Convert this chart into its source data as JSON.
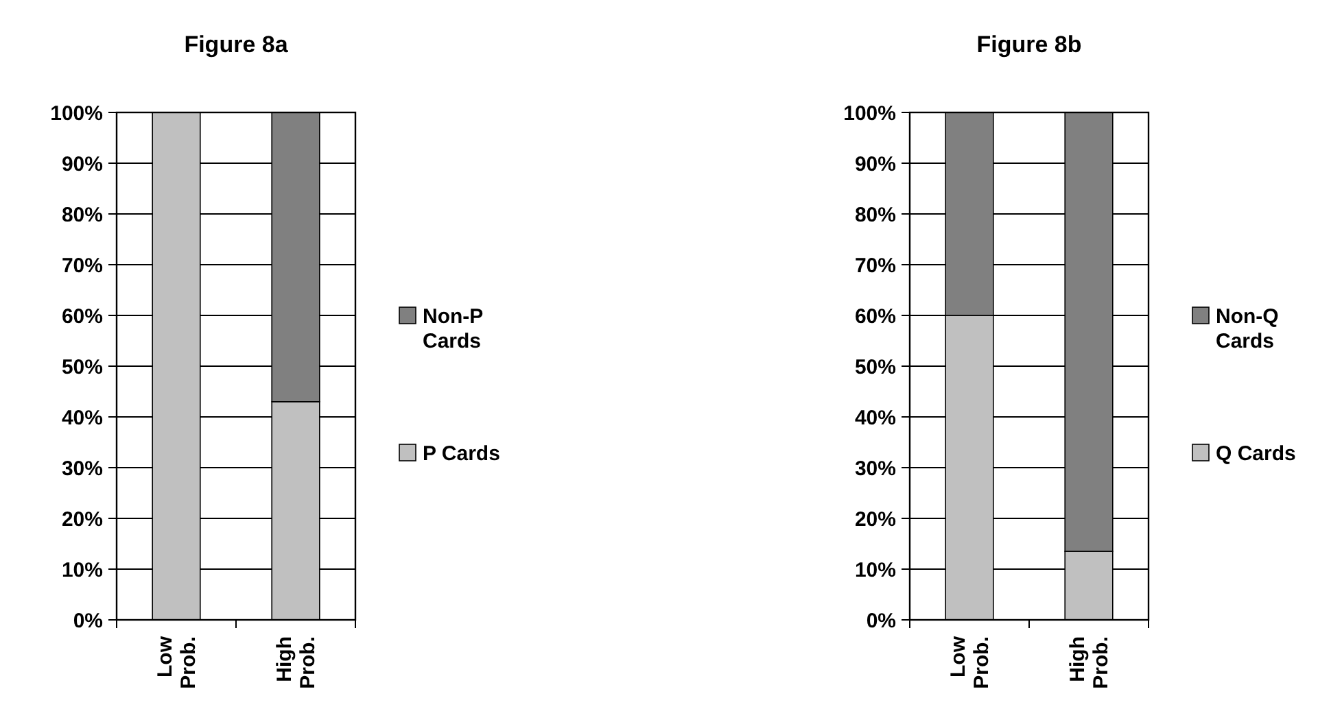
{
  "chart_data": [
    {
      "type": "bar",
      "title": "Figure 8a",
      "categories": [
        "Low Prob.",
        "High Prob."
      ],
      "stacked": true,
      "grid": "y",
      "legend": "right",
      "series": [
        {
          "name": "P Cards",
          "color": "#c0c0c0",
          "values": [
            100,
            43
          ]
        },
        {
          "name": "Non-P Cards",
          "color": "#808080",
          "values": [
            0,
            57
          ]
        }
      ],
      "ylim": [
        0,
        100
      ],
      "yticks": [
        {
          "value": 0,
          "label": "0%"
        },
        {
          "value": 10,
          "label": "10%"
        },
        {
          "value": 20,
          "label": "20%"
        },
        {
          "value": 30,
          "label": "30%"
        },
        {
          "value": 40,
          "label": "40%"
        },
        {
          "value": 50,
          "label": "50%"
        },
        {
          "value": 60,
          "label": "60%"
        },
        {
          "value": 70,
          "label": "70%"
        },
        {
          "value": 80,
          "label": "80%"
        },
        {
          "value": 90,
          "label": "90%"
        },
        {
          "value": 100,
          "label": "100%"
        }
      ]
    },
    {
      "type": "bar",
      "title": "Figure 8b",
      "categories": [
        "Low Prob.",
        "High Prob."
      ],
      "stacked": true,
      "grid": "y",
      "legend": "right",
      "series": [
        {
          "name": "Q Cards",
          "color": "#c0c0c0",
          "values": [
            60,
            13.5
          ]
        },
        {
          "name": "Non-Q Cards",
          "color": "#808080",
          "values": [
            40,
            86.5
          ]
        }
      ],
      "ylim": [
        0,
        100
      ],
      "yticks": [
        {
          "value": 0,
          "label": "0%"
        },
        {
          "value": 10,
          "label": "10%"
        },
        {
          "value": 20,
          "label": "20%"
        },
        {
          "value": 30,
          "label": "30%"
        },
        {
          "value": 40,
          "label": "40%"
        },
        {
          "value": 50,
          "label": "50%"
        },
        {
          "value": 60,
          "label": "60%"
        },
        {
          "value": 70,
          "label": "70%"
        },
        {
          "value": 80,
          "label": "80%"
        },
        {
          "value": 90,
          "label": "90%"
        },
        {
          "value": 100,
          "label": "100%"
        }
      ]
    }
  ]
}
